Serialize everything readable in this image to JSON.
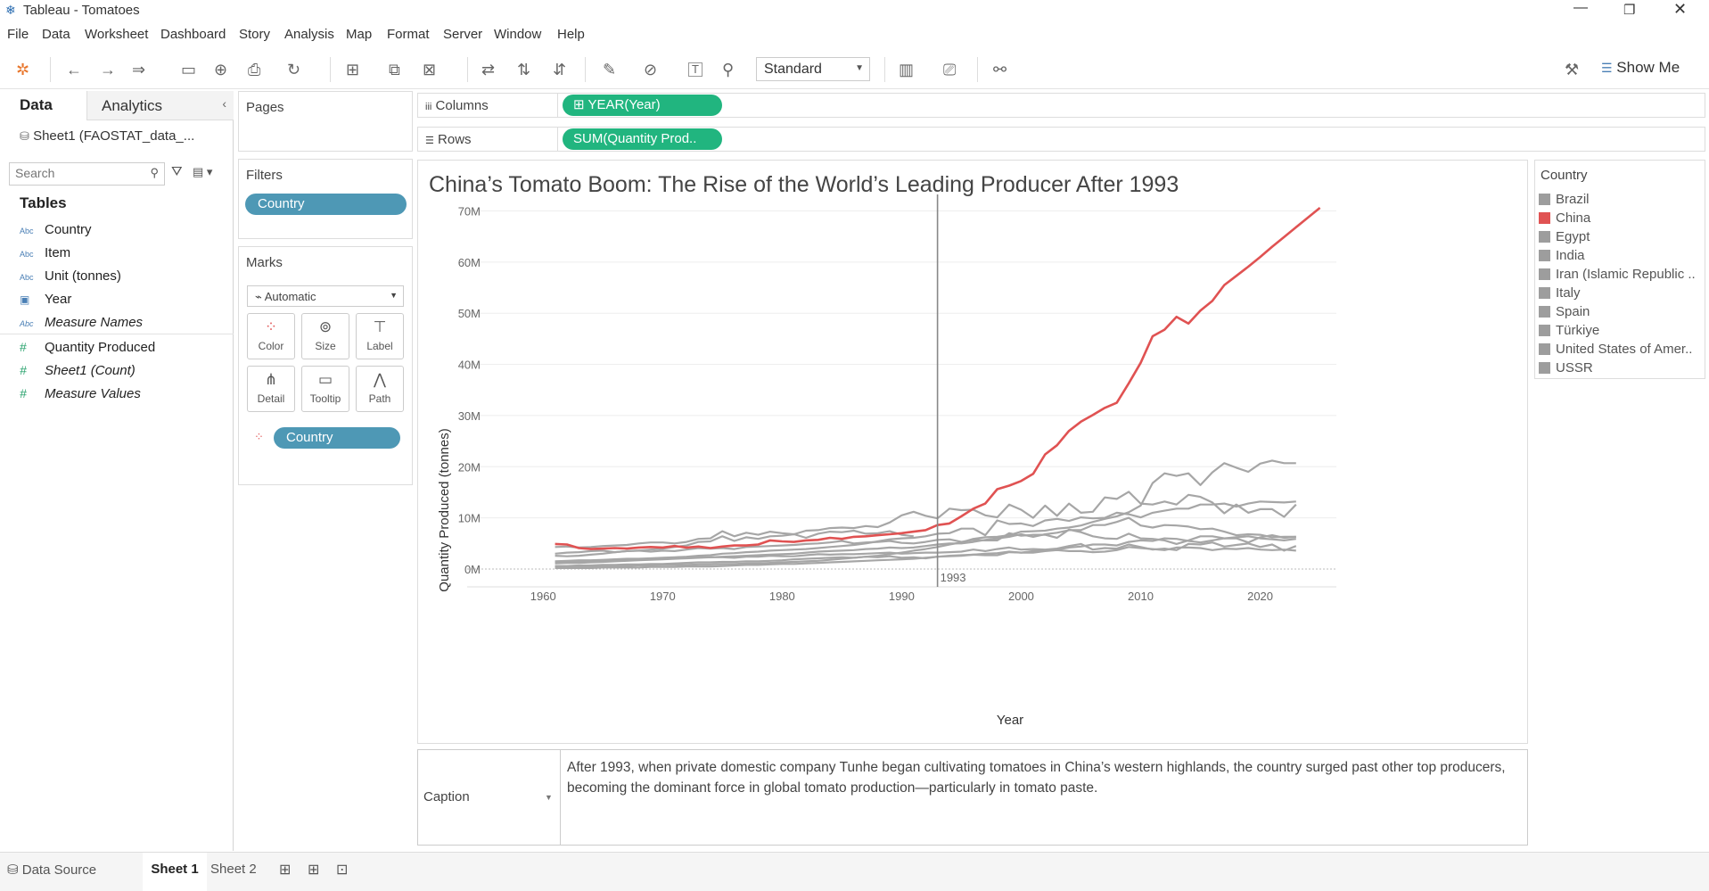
{
  "window": {
    "title": "Tableau - Tomatoes"
  },
  "menu": [
    "File",
    "Data",
    "Worksheet",
    "Dashboard",
    "Story",
    "Analysis",
    "Map",
    "Format",
    "Server",
    "Window",
    "Help"
  ],
  "toolbar": {
    "fit_select": "Standard",
    "show_me": "Show Me"
  },
  "datapane": {
    "tab_data": "Data",
    "tab_analytics": "Analytics",
    "source": "Sheet1 (FAOSTAT_data_...",
    "search_placeholder": "Search",
    "tables_label": "Tables",
    "fields": [
      {
        "icon": "Abc",
        "name": "Country"
      },
      {
        "icon": "Abc",
        "name": "Item"
      },
      {
        "icon": "Abc",
        "name": "Unit (tonnes)"
      },
      {
        "icon": "date",
        "name": "Year"
      },
      {
        "icon": "Abc",
        "name": "Measure Names"
      },
      {
        "icon": "#",
        "name": "Quantity Produced"
      },
      {
        "icon": "#",
        "name": "Sheet1 (Count)"
      },
      {
        "icon": "#",
        "name": "Measure Values"
      }
    ]
  },
  "pages_label": "Pages",
  "filters": {
    "label": "Filters",
    "pill": "Country"
  },
  "marks": {
    "label": "Marks",
    "type": "Automatic",
    "buttons": [
      "Color",
      "Size",
      "Label",
      "Detail",
      "Tooltip",
      "Path"
    ],
    "pill": "Country"
  },
  "shelves": {
    "columns_label": "Columns",
    "columns_pill": "YEAR(Year)",
    "rows_label": "Rows",
    "rows_pill": "SUM(Quantity Prod.."
  },
  "legend": {
    "title": "Country",
    "items": [
      {
        "name": "Brazil",
        "color": "#9d9d9d"
      },
      {
        "name": "China",
        "color": "#e05252"
      },
      {
        "name": "Egypt",
        "color": "#9d9d9d"
      },
      {
        "name": "India",
        "color": "#9d9d9d"
      },
      {
        "name": "Iran (Islamic Republic ..",
        "color": "#9d9d9d"
      },
      {
        "name": "Italy",
        "color": "#9d9d9d"
      },
      {
        "name": "Spain",
        "color": "#9d9d9d"
      },
      {
        "name": "Türkiye",
        "color": "#9d9d9d"
      },
      {
        "name": "United States of Amer..",
        "color": "#9d9d9d"
      },
      {
        "name": "USSR",
        "color": "#9d9d9d"
      }
    ]
  },
  "caption": {
    "label": "Caption",
    "text": "After 1993, when private domestic company Tunhe began cultivating tomatoes in China’s western highlands, the country surged past other top producers, becoming the dominant force in global tomato production—particularly in tomato paste."
  },
  "tabs": {
    "datasource": "Data Source",
    "sheets": [
      "Sheet 1",
      "Sheet 2"
    ]
  },
  "chart_data": {
    "type": "line",
    "title": "China’s Tomato Boom: The Rise of the World’s Leading Producer After 1993",
    "xlabel": "Year",
    "ylabel": "Quantity Produced (tonnes)",
    "xlim": [
      1957,
      2026
    ],
    "ylim": [
      0,
      72000000
    ],
    "xticks": [
      1960,
      1970,
      1980,
      1990,
      2000,
      2010,
      2020
    ],
    "yticks": [
      {
        "v": 0,
        "l": "0M"
      },
      {
        "v": 10000000,
        "l": "10M"
      },
      {
        "v": 20000000,
        "l": "20M"
      },
      {
        "v": 30000000,
        "l": "30M"
      },
      {
        "v": 40000000,
        "l": "40M"
      },
      {
        "v": 50000000,
        "l": "50M"
      },
      {
        "v": 60000000,
        "l": "60M"
      },
      {
        "v": 70000000,
        "l": "70M"
      }
    ],
    "reference_line": {
      "x": 1993,
      "label": "1993"
    },
    "highlight_color": "#e05252",
    "other_color": "#a6a6a6",
    "series": [
      {
        "name": "China",
        "x0": 1961,
        "values": [
          4.9,
          4.8,
          4.1,
          3.9,
          4.0,
          4.1,
          4.0,
          4.2,
          4.3,
          4.2,
          4.5,
          4.2,
          4.4,
          4.1,
          4.4,
          4.6,
          4.6,
          4.8,
          5.6,
          5.4,
          5.3,
          5.6,
          5.7,
          6.1,
          5.9,
          6.3,
          6.4,
          6.6,
          6.8,
          7.0,
          7.3,
          7.6,
          8.6,
          8.9,
          10.3,
          11.8,
          12.8,
          15.6,
          16.3,
          17.2,
          18.6,
          22.4,
          24.2,
          27.0,
          28.8,
          30.1,
          31.5,
          32.5,
          36.3,
          40.3,
          45.5,
          46.8,
          49.3,
          48.0,
          50.5,
          52.4,
          55.5,
          57.3,
          59.1,
          61.0,
          63.0,
          64.9,
          66.8,
          68.7,
          70.6
        ]
      },
      {
        "name": "India",
        "x0": 1961,
        "values": [
          0.5,
          0.5,
          0.5,
          0.5,
          0.6,
          0.6,
          0.6,
          0.7,
          0.7,
          0.8,
          0.8,
          0.8,
          0.9,
          0.9,
          1.0,
          1.0,
          1.1,
          1.1,
          1.2,
          1.3,
          1.4,
          1.5,
          1.6,
          1.8,
          2.0,
          2.2,
          2.4,
          2.6,
          2.9,
          3.2,
          3.6,
          3.9,
          4.3,
          4.8,
          5.2,
          5.9,
          6.2,
          6.3,
          6.6,
          7.3,
          7.4,
          7.5,
          7.9,
          8.1,
          8.5,
          9.2,
          9.8,
          10.3,
          11.1,
          12.4,
          16.8,
          18.7,
          18.2,
          18.7,
          16.4,
          18.9,
          20.7,
          19.8,
          19.0,
          20.6,
          21.2,
          20.7,
          20.7
        ]
      },
      {
        "name": "USA",
        "x0": 1961,
        "values": [
          4.3,
          4.4,
          4.2,
          4.3,
          4.5,
          4.6,
          4.7,
          5.0,
          5.2,
          5.2,
          5.0,
          5.3,
          5.9,
          6.0,
          7.4,
          6.4,
          7.1,
          6.7,
          7.3,
          7.0,
          6.8,
          7.5,
          7.6,
          8.0,
          8.1,
          8.0,
          8.4,
          8.2,
          9.1,
          10.5,
          11.2,
          10.4,
          9.9,
          11.8,
          11.5,
          11.6,
          10.5,
          10.1,
          12.6,
          11.6,
          10.0,
          12.4,
          10.4,
          12.8,
          11.0,
          11.2,
          14.0,
          13.7,
          15.1,
          12.8,
          12.6,
          13.2,
          12.6,
          14.5,
          14.1,
          13.0,
          10.9,
          12.6,
          11.0,
          11.7,
          11.7,
          10.2,
          12.6
        ]
      },
      {
        "name": "Türkiye",
        "x0": 1961,
        "values": [
          1.5,
          1.6,
          1.7,
          1.7,
          1.8,
          1.9,
          2.0,
          2.0,
          2.1,
          2.2,
          2.3,
          2.4,
          2.6,
          2.7,
          3.0,
          3.1,
          3.3,
          3.4,
          3.6,
          3.7,
          3.8,
          3.9,
          4.1,
          4.3,
          4.5,
          4.7,
          5.0,
          5.4,
          5.8,
          6.0,
          6.1,
          6.4,
          6.9,
          7.0,
          7.9,
          7.9,
          6.6,
          9.5,
          8.8,
          8.9,
          8.4,
          9.5,
          9.8,
          9.4,
          10.1,
          9.9,
          10.0,
          11.0,
          10.7,
          10.1,
          11.0,
          11.4,
          11.8,
          11.8,
          12.6,
          12.6,
          12.8,
          12.2,
          12.8,
          13.2,
          13.1,
          13.0,
          13.2
        ]
      },
      {
        "name": "Egypt",
        "x0": 1961,
        "values": [
          1.1,
          1.2,
          1.2,
          1.3,
          1.4,
          1.5,
          1.6,
          1.7,
          1.8,
          1.9,
          2.0,
          2.1,
          2.2,
          2.3,
          2.4,
          2.5,
          2.6,
          2.7,
          2.8,
          2.9,
          3.0,
          3.2,
          3.4,
          3.5,
          3.6,
          3.7,
          3.9,
          4.0,
          4.2,
          4.1,
          4.2,
          4.5,
          4.8,
          5.0,
          5.0,
          5.3,
          5.7,
          6.0,
          6.3,
          6.8,
          6.3,
          6.8,
          7.1,
          7.6,
          7.6,
          8.6,
          8.6,
          9.2,
          10.0,
          8.5,
          8.1,
          8.6,
          8.5,
          8.3,
          7.8,
          7.9,
          7.3,
          6.6,
          6.8,
          6.7,
          6.2,
          6.3,
          6.3
        ]
      },
      {
        "name": "Italy",
        "x0": 1961,
        "values": [
          3.0,
          3.2,
          3.3,
          3.5,
          3.6,
          3.3,
          3.5,
          3.6,
          3.4,
          3.6,
          3.5,
          3.8,
          4.1,
          4.0,
          4.1,
          3.9,
          4.3,
          4.4,
          4.5,
          4.6,
          4.7,
          4.9,
          5.0,
          5.2,
          5.5,
          5.0,
          5.2,
          5.3,
          5.5,
          5.1,
          5.0,
          5.3,
          5.7,
          5.8,
          5.3,
          5.7,
          5.6,
          5.6,
          7.0,
          6.5,
          6.7,
          6.7,
          6.1,
          7.7,
          7.2,
          6.4,
          6.0,
          5.9,
          6.9,
          6.0,
          5.9,
          5.6,
          4.9,
          5.6,
          6.4,
          6.4,
          6.0,
          6.0,
          5.2,
          6.2,
          6.6,
          6.1,
          6.3
        ]
      },
      {
        "name": "Spain",
        "x0": 1961,
        "values": [
          1.3,
          1.4,
          1.5,
          1.5,
          1.6,
          1.6,
          1.7,
          1.9,
          2.0,
          2.1,
          2.1,
          2.2,
          2.3,
          2.3,
          2.3,
          2.2,
          2.4,
          2.4,
          2.6,
          2.5,
          2.5,
          2.7,
          2.9,
          2.8,
          2.9,
          2.9,
          3.0,
          3.1,
          3.2,
          3.0,
          3.1,
          3.2,
          3.2,
          3.3,
          3.4,
          3.8,
          3.5,
          3.9,
          4.2,
          3.8,
          3.9,
          3.8,
          4.0,
          4.5,
          4.9,
          3.8,
          4.1,
          4.0,
          4.8,
          4.3,
          3.8,
          4.0,
          3.7,
          4.9,
          4.8,
          5.2,
          4.4,
          4.7,
          5.0,
          4.3,
          4.8,
          3.6,
          4.5
        ]
      },
      {
        "name": "Iran",
        "x0": 1961,
        "values": [
          0.2,
          0.2,
          0.2,
          0.2,
          0.3,
          0.3,
          0.3,
          0.3,
          0.4,
          0.4,
          0.4,
          0.5,
          0.5,
          0.5,
          0.6,
          0.7,
          0.8,
          0.8,
          0.9,
          1.0,
          1.0,
          1.1,
          1.2,
          1.3,
          1.4,
          1.5,
          1.6,
          1.7,
          1.8,
          1.9,
          2.0,
          2.2,
          2.4,
          2.5,
          2.6,
          2.8,
          3.0,
          3.1,
          3.4,
          3.2,
          3.5,
          3.6,
          3.8,
          4.2,
          4.4,
          4.8,
          4.8,
          4.6,
          5.3,
          5.6,
          5.5,
          6.0,
          5.9,
          5.5,
          5.2,
          5.6,
          6.0,
          6.2,
          6.4,
          6.0,
          5.8,
          5.6,
          5.9
        ]
      },
      {
        "name": "Brazil",
        "x0": 1961,
        "values": [
          0.6,
          0.6,
          0.7,
          0.7,
          0.8,
          0.8,
          0.9,
          0.9,
          1.0,
          1.0,
          1.1,
          1.2,
          1.3,
          1.3,
          1.4,
          1.4,
          1.5,
          1.5,
          1.6,
          1.7,
          1.9,
          2.0,
          2.1,
          2.2,
          2.3,
          2.2,
          2.4,
          2.3,
          2.5,
          2.2,
          2.3,
          2.1,
          2.4,
          2.6,
          2.7,
          2.8,
          2.7,
          2.7,
          3.3,
          3.2,
          3.2,
          3.5,
          3.7,
          3.5,
          3.5,
          3.3,
          3.4,
          3.7,
          4.3,
          4.1,
          3.9,
          3.7,
          4.2,
          4.2,
          4.1,
          3.7,
          4.0,
          3.9,
          4.1,
          3.8,
          3.7,
          3.8,
          3.6
        ]
      },
      {
        "name": "USSR",
        "x0": 1961,
        "values": [
          2.6,
          2.5,
          2.6,
          2.8,
          3.0,
          3.3,
          3.5,
          3.6,
          3.8,
          4.0,
          4.3,
          4.6,
          5.3,
          5.4,
          6.4,
          5.5,
          6.2,
          5.9,
          6.4,
          6.5,
          6.8,
          6.1,
          6.9,
          7.3,
          7.2,
          7.5,
          6.9,
          7.0,
          7.4,
          6.7,
          6.4
        ]
      }
    ]
  }
}
